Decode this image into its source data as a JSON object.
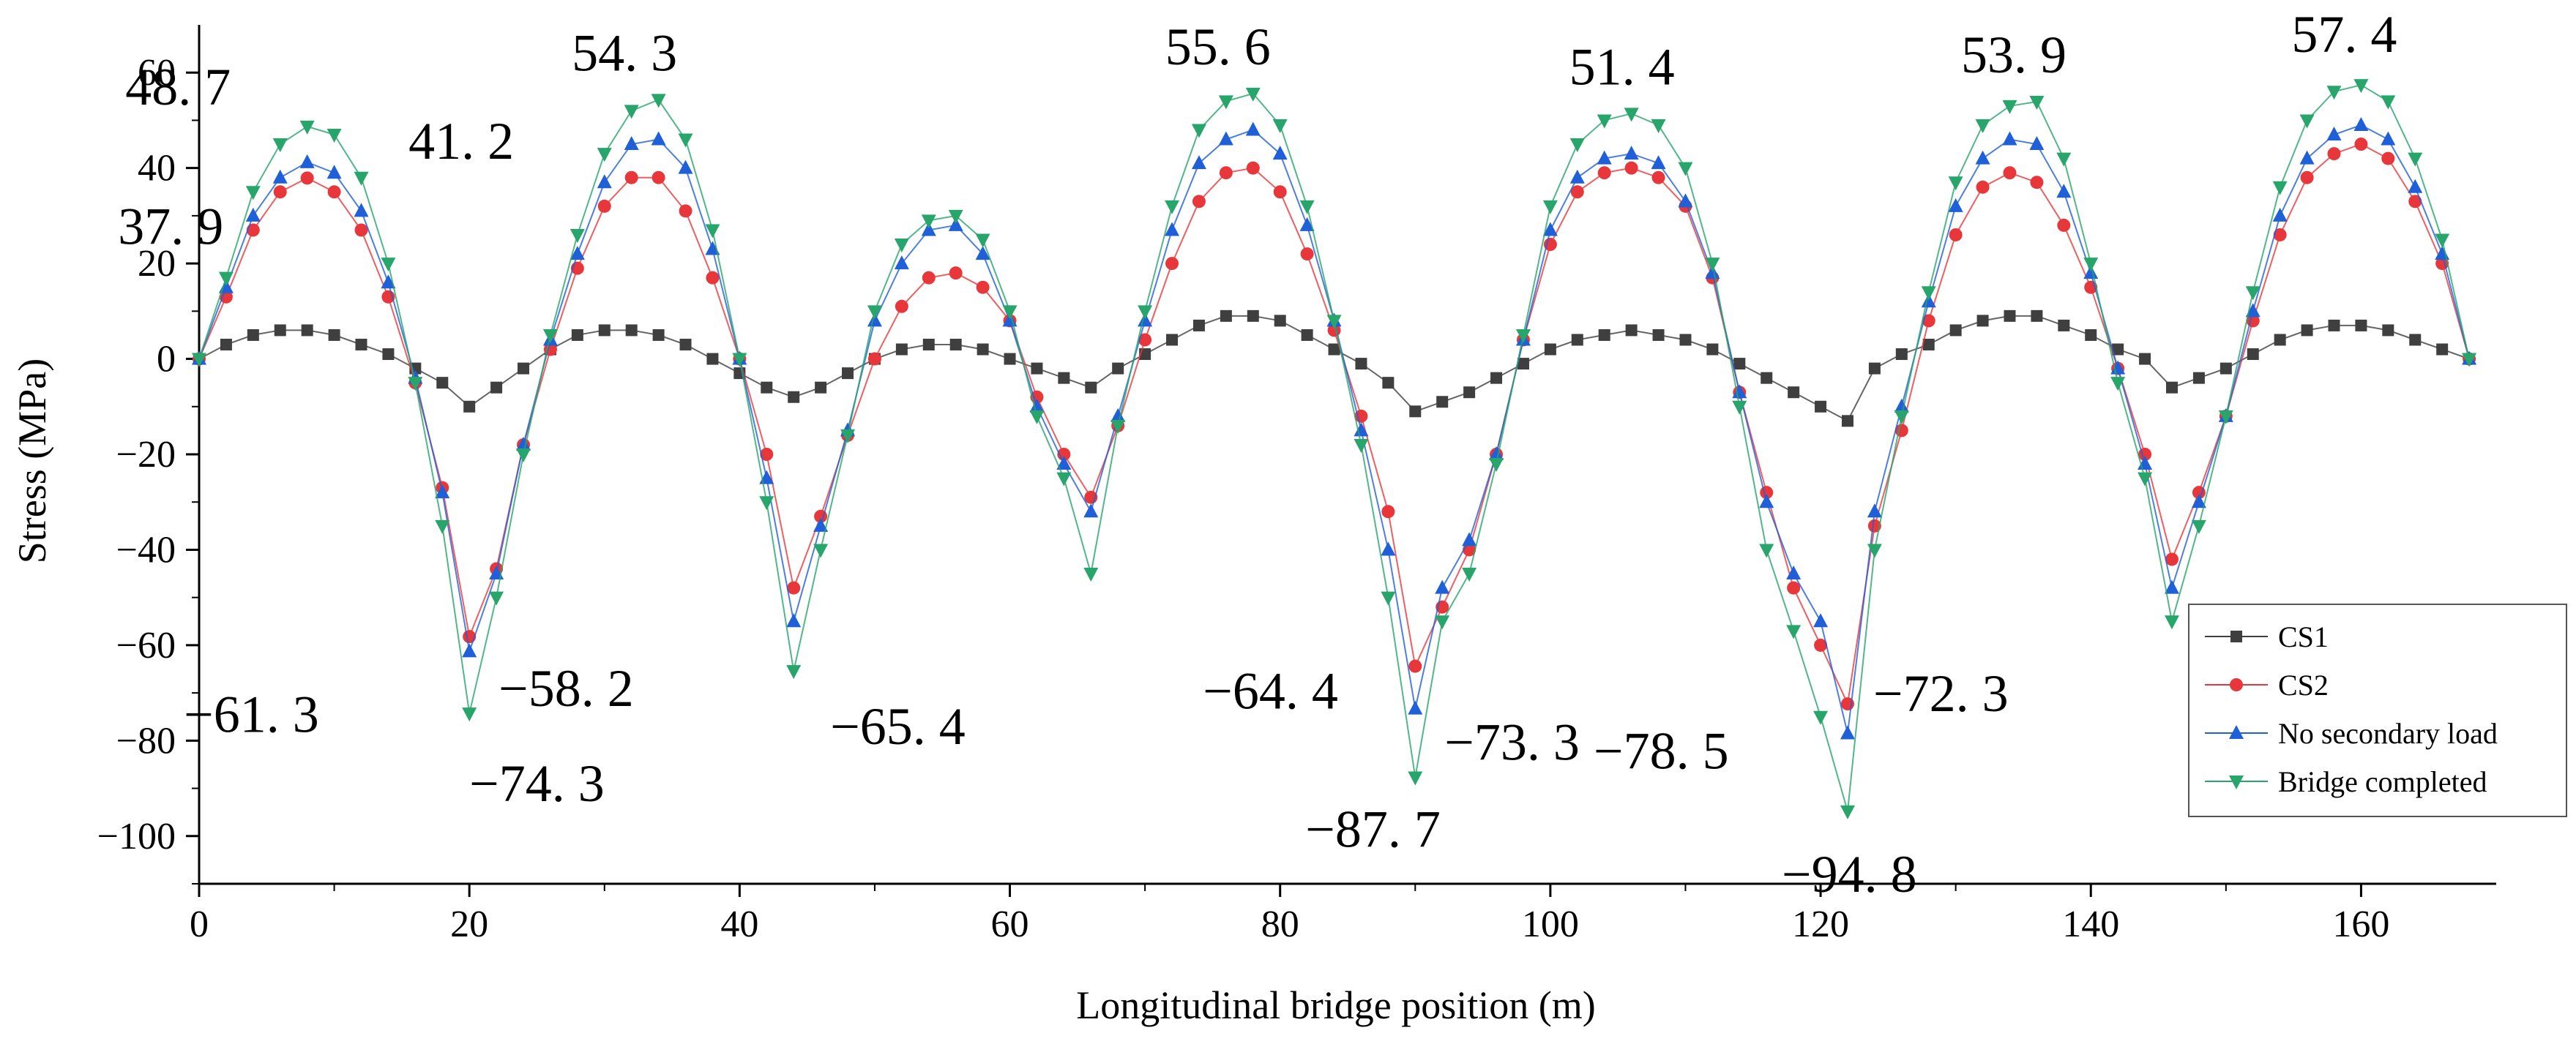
{
  "chart_data": {
    "type": "line",
    "title": "",
    "xlabel": "Longitudinal bridge position (m)",
    "ylabel": "Stress (MPa)",
    "xlim": [
      0,
      170
    ],
    "ylim": [
      -110,
      70
    ],
    "xticks": [
      0,
      20,
      40,
      60,
      80,
      100,
      120,
      140,
      160
    ],
    "yticks": [
      60,
      40,
      20,
      0,
      -20,
      -40,
      -60,
      -80,
      -100
    ],
    "xtick_labels": [
      "0",
      "20",
      "40",
      "60",
      "80",
      "100",
      "120",
      "140",
      "160"
    ],
    "ytick_labels": [
      "60",
      "40",
      "20",
      "0",
      "−20",
      "−40",
      "−60",
      "−80",
      "−100"
    ],
    "legend_position": "bottom-right",
    "series": [
      {
        "name": "CS1",
        "color": "#3f3f3f",
        "marker": "square",
        "x": [
          0,
          2,
          4,
          6,
          8,
          10,
          12,
          14,
          16,
          18,
          20,
          22,
          24,
          26,
          28,
          30,
          32,
          34,
          36,
          38,
          40,
          42,
          44,
          46,
          48,
          50,
          52,
          54,
          56,
          58,
          60,
          62,
          64,
          66,
          68,
          70,
          72,
          74,
          76,
          78,
          80,
          82,
          84,
          86,
          88,
          90,
          92,
          94,
          96,
          98,
          100,
          102,
          104,
          106,
          108,
          110,
          112,
          114,
          116,
          118,
          120,
          122,
          124,
          126,
          128,
          130,
          132,
          134,
          136,
          138,
          140,
          142,
          144,
          146,
          148,
          150,
          152,
          154,
          156,
          158,
          160,
          162,
          164,
          166,
          168
        ],
        "y": [
          0,
          3,
          5,
          6,
          6,
          5,
          3,
          1,
          -2,
          -5,
          -10,
          -6,
          -2,
          2,
          5,
          6,
          6,
          5,
          3,
          0,
          -3,
          -6,
          -8,
          -6,
          -3,
          0,
          2,
          3,
          3,
          2,
          0,
          -2,
          -4,
          -6,
          -2,
          1,
          4,
          7,
          9,
          9,
          8,
          5,
          2,
          -1,
          -5,
          -11,
          -9,
          -7,
          -4,
          -1,
          2,
          4,
          5,
          6,
          5,
          4,
          2,
          -1,
          -4,
          -7,
          -10,
          -13,
          -2,
          1,
          3,
          6,
          8,
          9,
          9,
          7,
          5,
          2,
          0,
          -6,
          -4,
          -2,
          1,
          4,
          6,
          7,
          7,
          6,
          4,
          2,
          0
        ]
      },
      {
        "name": "CS2",
        "color": "#e8373a",
        "marker": "circle",
        "x": [
          0,
          2,
          4,
          6,
          8,
          10,
          12,
          14,
          16,
          18,
          20,
          22,
          24,
          26,
          28,
          30,
          32,
          34,
          36,
          38,
          40,
          42,
          44,
          46,
          48,
          50,
          52,
          54,
          56,
          58,
          60,
          62,
          64,
          66,
          68,
          70,
          72,
          74,
          76,
          78,
          80,
          82,
          84,
          86,
          88,
          90,
          92,
          94,
          96,
          98,
          100,
          102,
          104,
          106,
          108,
          110,
          112,
          114,
          116,
          118,
          120,
          122,
          124,
          126,
          128,
          130,
          132,
          134,
          136,
          138,
          140,
          142,
          144,
          146,
          148,
          150,
          152,
          154,
          156,
          158,
          160,
          162,
          164,
          166,
          168
        ],
        "y": [
          0,
          13,
          27,
          35,
          37.9,
          35,
          27,
          13,
          -5,
          -27,
          -58.2,
          -44,
          -18,
          2,
          19,
          32,
          38,
          38,
          31,
          17,
          0,
          -20,
          -48,
          -33,
          -16,
          0,
          11,
          17,
          18,
          15,
          8,
          -8,
          -20,
          -29,
          -14,
          4,
          20,
          33,
          39,
          40,
          35,
          22,
          6,
          -12,
          -32,
          -64.4,
          -52,
          -40,
          -20,
          4,
          24,
          35,
          39,
          40,
          38,
          32,
          17,
          -7,
          -28,
          -48,
          -60,
          -72.3,
          -35,
          -15,
          8,
          26,
          36,
          39,
          37,
          28,
          15,
          -2,
          -20,
          -42,
          -28,
          -12,
          8,
          26,
          38,
          43,
          45,
          42,
          33,
          20,
          0
        ]
      },
      {
        "name": "No secondary load",
        "color": "#1f5fd8",
        "marker": "triangle-up",
        "x": [
          0,
          2,
          4,
          6,
          8,
          10,
          12,
          14,
          16,
          18,
          20,
          22,
          24,
          26,
          28,
          30,
          32,
          34,
          36,
          38,
          40,
          42,
          44,
          46,
          48,
          50,
          52,
          54,
          56,
          58,
          60,
          62,
          64,
          66,
          68,
          70,
          72,
          74,
          76,
          78,
          80,
          82,
          84,
          86,
          88,
          90,
          92,
          94,
          96,
          98,
          100,
          102,
          104,
          106,
          108,
          110,
          112,
          114,
          116,
          118,
          120,
          122,
          124,
          126,
          128,
          130,
          132,
          134,
          136,
          138,
          140,
          142,
          144,
          146,
          148,
          150,
          152,
          154,
          156,
          158,
          160,
          162,
          164,
          166,
          168
        ],
        "y": [
          0,
          15,
          30,
          38,
          41.2,
          39,
          31,
          16,
          -4,
          -28,
          -61.3,
          -45,
          -18,
          4,
          22,
          37,
          45,
          46,
          40,
          23,
          0,
          -25,
          -55,
          -35,
          -15,
          8,
          20,
          27,
          28,
          22,
          8,
          -10,
          -22,
          -32,
          -12,
          8,
          27,
          41,
          46,
          48,
          43,
          28,
          8,
          -15,
          -40,
          -73.3,
          -48,
          -38,
          -20,
          4,
          27,
          38,
          42,
          43,
          41,
          33,
          18,
          -7,
          -30,
          -45,
          -55,
          -78.5,
          -32,
          -10,
          12,
          32,
          42,
          46,
          45,
          35,
          18,
          -2,
          -22,
          -48,
          -30,
          -12,
          10,
          30,
          42,
          47,
          49,
          46,
          36,
          22,
          0
        ]
      },
      {
        "name": "Bridge completed",
        "color": "#27a56a",
        "marker": "triangle-down",
        "x": [
          0,
          2,
          4,
          6,
          8,
          10,
          12,
          14,
          16,
          18,
          20,
          22,
          24,
          26,
          28,
          30,
          32,
          34,
          36,
          38,
          40,
          42,
          44,
          46,
          48,
          50,
          52,
          54,
          56,
          58,
          60,
          62,
          64,
          66,
          68,
          70,
          72,
          74,
          76,
          78,
          80,
          82,
          84,
          86,
          88,
          90,
          92,
          94,
          96,
          98,
          100,
          102,
          104,
          106,
          108,
          110,
          112,
          114,
          116,
          118,
          120,
          122,
          124,
          126,
          128,
          130,
          132,
          134,
          136,
          138,
          140,
          142,
          144,
          146,
          148,
          150,
          152,
          154,
          156,
          158,
          160,
          162,
          164,
          166,
          168
        ],
        "y": [
          0,
          17,
          35,
          45,
          48.7,
          47,
          38,
          20,
          -5,
          -35,
          -74.3,
          -50,
          -20,
          5,
          26,
          43,
          52,
          54.3,
          46,
          27,
          0,
          -30,
          -65.4,
          -40,
          -16,
          10,
          24,
          29,
          30,
          25,
          10,
          -12,
          -25,
          -45,
          -14,
          10,
          32,
          48,
          54,
          55.6,
          49,
          32,
          8,
          -18,
          -50,
          -87.7,
          -55,
          -45,
          -22,
          5,
          32,
          45,
          50,
          51.4,
          49,
          40,
          20,
          -10,
          -40,
          -57,
          -75,
          -94.8,
          -40,
          -12,
          14,
          37,
          49,
          53,
          53.9,
          42,
          20,
          -5,
          -25,
          -55,
          -35,
          -12,
          14,
          36,
          50,
          56,
          57.4,
          54,
          42,
          25,
          0
        ]
      }
    ],
    "annotations": [
      {
        "text": "48. 7",
        "x": 7,
        "y": 48.7
      },
      {
        "text": "41. 2",
        "x": 9,
        "y": 41.2
      },
      {
        "text": "37. 9",
        "x": 7,
        "y": 37.9
      },
      {
        "text": "54. 3",
        "x": 33,
        "y": 54.3
      },
      {
        "text": "−61. 3",
        "x": 20,
        "y": -61.3
      },
      {
        "text": "−58. 2",
        "x": 20,
        "y": -58.2
      },
      {
        "text": "−74. 3",
        "x": 20,
        "y": -74.3
      },
      {
        "text": "−65. 4",
        "x": 44,
        "y": -65.4
      },
      {
        "text": "55. 6",
        "x": 78,
        "y": 55.6
      },
      {
        "text": "−64. 4",
        "x": 90,
        "y": -64.4
      },
      {
        "text": "−73. 3",
        "x": 90,
        "y": -73.3
      },
      {
        "text": "−87. 7",
        "x": 90,
        "y": -87.7
      },
      {
        "text": "51. 4",
        "x": 106,
        "y": 51.4
      },
      {
        "text": "−78. 5",
        "x": 120,
        "y": -78.5
      },
      {
        "text": "−72. 3",
        "x": 122,
        "y": -72.3
      },
      {
        "text": "−94. 8",
        "x": 122,
        "y": -94.8
      },
      {
        "text": "53. 9",
        "x": 135,
        "y": 53.9
      },
      {
        "text": "57. 4",
        "x": 160,
        "y": 57.4
      }
    ]
  }
}
